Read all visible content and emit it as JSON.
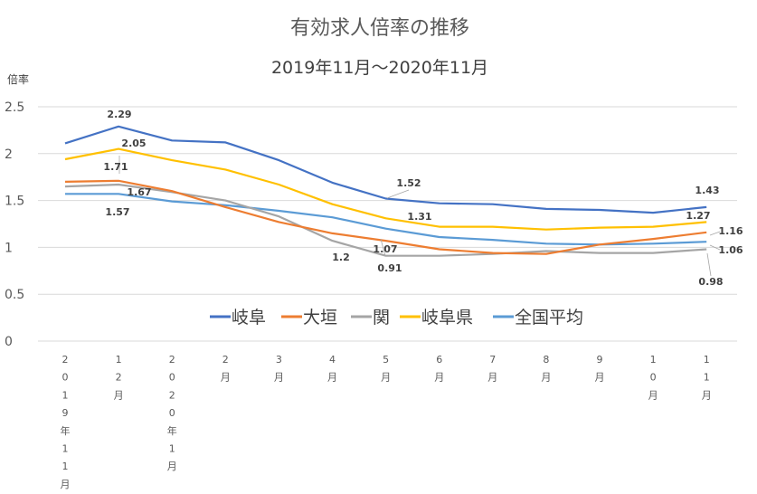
{
  "chart_data": {
    "type": "line",
    "title": "有効求人倍率の推移",
    "subtitle": "2019年11月～2020年11月",
    "ylabel": "倍率",
    "xlabel": "",
    "ylim": [
      0,
      2.5
    ],
    "yticks": [
      "0",
      "0.5",
      "1",
      "1.5",
      "2",
      "2.5"
    ],
    "grid": true,
    "legend_position": "bottom-center",
    "categories": [
      "2019年11月",
      "12月",
      "2020年1月",
      "2月",
      "3月",
      "4月",
      "5月",
      "6月",
      "7月",
      "8月",
      "9月",
      "10月",
      "11月"
    ],
    "series": [
      {
        "name": "岐阜",
        "color": "#4472C4",
        "values": [
          2.11,
          2.29,
          2.14,
          2.12,
          1.93,
          1.69,
          1.52,
          1.47,
          1.46,
          1.41,
          1.4,
          1.37,
          1.43
        ]
      },
      {
        "name": "大垣",
        "color": "#ED7D31",
        "values": [
          1.7,
          1.71,
          1.6,
          1.43,
          1.27,
          1.15,
          1.07,
          0.98,
          0.94,
          0.93,
          1.03,
          1.09,
          1.16
        ]
      },
      {
        "name": "関",
        "color": "#A5A5A5",
        "values": [
          1.65,
          1.67,
          1.59,
          1.5,
          1.33,
          1.07,
          0.91,
          0.91,
          0.93,
          0.96,
          0.94,
          0.94,
          0.98
        ]
      },
      {
        "name": "岐阜県",
        "color": "#FFC000",
        "values": [
          1.94,
          2.05,
          1.93,
          1.83,
          1.67,
          1.46,
          1.31,
          1.22,
          1.22,
          1.19,
          1.21,
          1.22,
          1.27
        ]
      },
      {
        "name": "全国平均",
        "color": "#5B9BD5",
        "values": [
          1.57,
          1.57,
          1.49,
          1.45,
          1.39,
          1.32,
          1.2,
          1.11,
          1.08,
          1.04,
          1.03,
          1.04,
          1.06
        ]
      }
    ],
    "data_labels": [
      {
        "text": "2.29"
      },
      {
        "text": "2.05"
      },
      {
        "text": "1.71"
      },
      {
        "text": "1.67"
      },
      {
        "text": "1.57"
      },
      {
        "text": "1.52"
      },
      {
        "text": "1.31"
      },
      {
        "text": "1.2"
      },
      {
        "text": "1.07"
      },
      {
        "text": "0.91"
      },
      {
        "text": "1.43"
      },
      {
        "text": "1.27"
      },
      {
        "text": "1.16"
      },
      {
        "text": "1.06"
      },
      {
        "text": "0.98"
      }
    ]
  }
}
